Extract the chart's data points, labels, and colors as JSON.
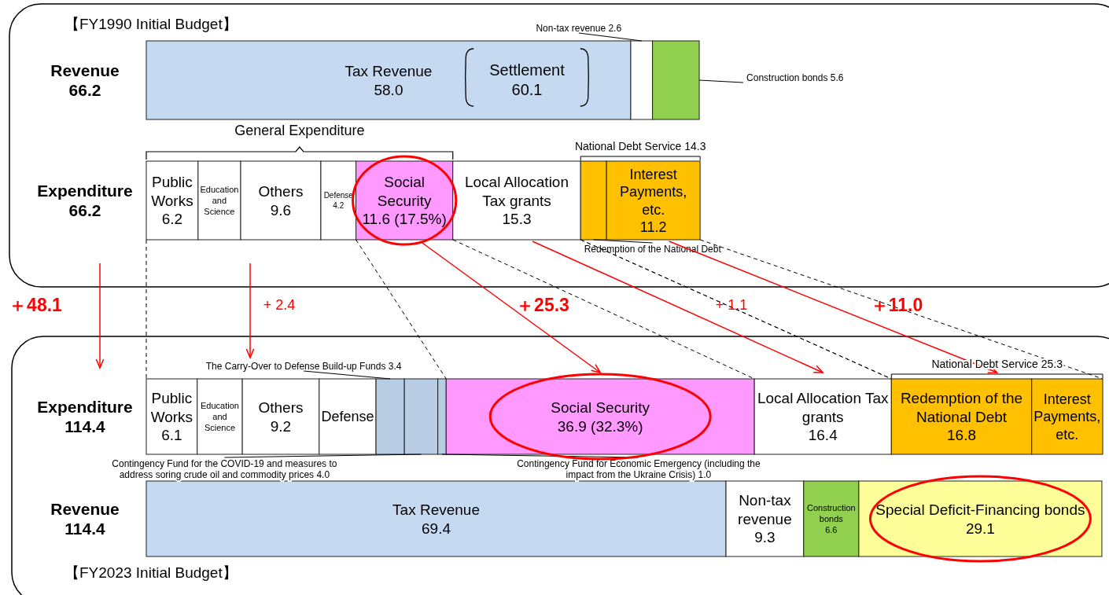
{
  "chart_data": {
    "type": "bar",
    "orientation": "horizontal",
    "stacked": true,
    "categories": [
      "Revenue 66.2",
      "Expenditure 66.2",
      "Expenditure 114.4",
      "Revenue 114.4"
    ],
    "series": [
      {
        "name": "Tax Revenue",
        "color": "#c5d9f1",
        "values": [
          58.0,
          null,
          null,
          69.4
        ],
        "value_labels": [
          "58.0",
          null,
          null,
          "69.4"
        ]
      },
      {
        "name": "Non-tax revenue",
        "color": "#ffffff",
        "values": [
          2.6,
          null,
          null,
          9.3
        ],
        "value_labels": [
          "2.6",
          null,
          null,
          "9.3"
        ]
      },
      {
        "name": "Construction bonds",
        "color": "#92d050",
        "values": [
          5.6,
          null,
          null,
          6.6
        ],
        "value_labels": [
          "5.6",
          null,
          null,
          "6.6"
        ]
      },
      {
        "name": "Special Deficit-Financing bonds",
        "color": "#ffff99",
        "values": [
          null,
          null,
          null,
          29.1
        ],
        "value_labels": [
          null,
          null,
          null,
          "29.1"
        ]
      },
      {
        "name": "Public Works",
        "color": "#ffffff",
        "values": [
          null,
          6.2,
          6.1,
          null
        ],
        "value_labels": [
          null,
          "6.2",
          "6.1",
          null
        ]
      },
      {
        "name": "Education and Science",
        "color": "#ffffff",
        "values": [
          null,
          5.1,
          5.4,
          null
        ],
        "value_labels": [
          null,
          null,
          null,
          null
        ]
      },
      {
        "name": "Others",
        "color": "#ffffff",
        "values": [
          null,
          9.6,
          9.2,
          null
        ],
        "value_labels": [
          null,
          "9.6",
          "9.2",
          null
        ]
      },
      {
        "name": "Defense",
        "color": "#ffffff",
        "values": [
          null,
          4.2,
          6.8,
          null
        ],
        "value_labels": [
          null,
          "4.2",
          null,
          null
        ]
      },
      {
        "name": "The Carry-Over to Defense Build-up Funds",
        "color": "#b8cce4",
        "values": [
          null,
          null,
          3.4,
          null
        ],
        "value_labels": [
          null,
          null,
          "3.4",
          null
        ]
      },
      {
        "name": "Contingency Fund for the COVID-19 and measures to address soring crude oil and commodity prices",
        "color": "#b8cce4",
        "values": [
          null,
          null,
          4.0,
          null
        ],
        "value_labels": [
          null,
          null,
          "4.0",
          null
        ]
      },
      {
        "name": "Contingency Fund for Economic Emergency (including the impact from the Ukraine Crisis)",
        "color": "#b8cce4",
        "values": [
          null,
          null,
          1.0,
          null
        ],
        "value_labels": [
          null,
          null,
          "1.0",
          null
        ]
      },
      {
        "name": "Social Security",
        "color": "#ff99ff",
        "values": [
          null,
          11.6,
          36.9,
          null
        ],
        "value_labels": [
          null,
          "11.6 (17.5%)",
          "36.9 (32.3%)",
          null
        ]
      },
      {
        "name": "Local Allocation Tax grants",
        "color": "#ffffff",
        "values": [
          null,
          15.3,
          16.4,
          null
        ],
        "value_labels": [
          null,
          "15.3",
          "16.4",
          null
        ]
      },
      {
        "name": "Redemption of the National Debt",
        "color": "#ffc000",
        "values": [
          null,
          3.1,
          16.8,
          null
        ],
        "value_labels": [
          null,
          null,
          "16.8",
          null
        ]
      },
      {
        "name": "Interest Payments, etc.",
        "color": "#ffc000",
        "values": [
          null,
          11.2,
          8.5,
          null
        ],
        "value_labels": [
          null,
          "11.2",
          null,
          null
        ]
      }
    ],
    "annotations": [
      "【FY1990 Initial Budget】",
      "【FY2023 Initial Budget】",
      "General Expenditure",
      "Settlement 60.1",
      "＋48.1",
      "+ 2.4",
      "＋25.3",
      "+ 1.1",
      "＋11.0",
      "National Debt Service 14.3",
      "National Debt Service 25.3"
    ]
  }
}
